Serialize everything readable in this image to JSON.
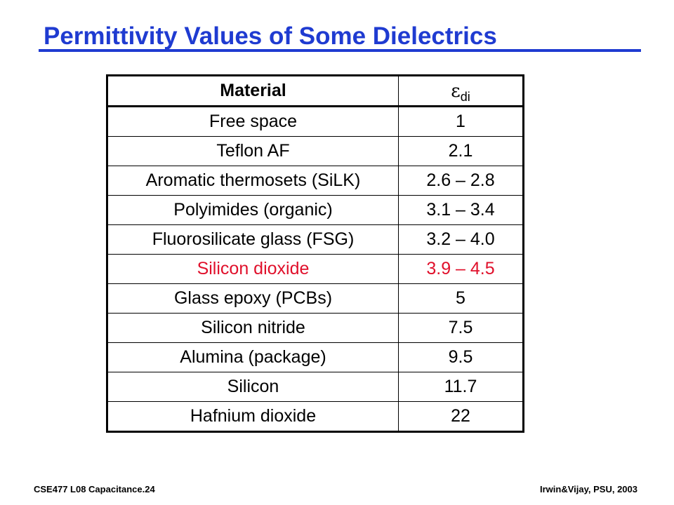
{
  "slide": {
    "title": "Permittivity Values of Some Dielectrics",
    "title_color": "#1f3bd1",
    "highlight_color": "#e0102b"
  },
  "table": {
    "headers": {
      "material": "Material",
      "value_symbol": "ε",
      "value_subscript": "di"
    },
    "rows": [
      {
        "material": "Free space",
        "value": "1"
      },
      {
        "material": "Teflon AF",
        "value": "2.1"
      },
      {
        "material": "Aromatic thermosets (SiLK)",
        "value": "2.6 – 2.8"
      },
      {
        "material": "Polyimides (organic)",
        "value": "3.1 – 3.4"
      },
      {
        "material": "Fluorosilicate glass (FSG)",
        "value": "3.2 – 4.0"
      },
      {
        "material": "Silicon dioxide",
        "value": "3.9 – 4.5",
        "highlighted": true
      },
      {
        "material": "Glass epoxy (PCBs)",
        "value": "5"
      },
      {
        "material": "Silicon nitride",
        "value": "7.5"
      },
      {
        "material": "Alumina (package)",
        "value": "9.5"
      },
      {
        "material": "Silicon",
        "value": "11.7"
      },
      {
        "material": "Hafnium dioxide",
        "value": "22"
      }
    ]
  },
  "footer": {
    "left": "CSE477  L08 Capacitance.24",
    "right": "Irwin&Vijay, PSU, 2003"
  }
}
